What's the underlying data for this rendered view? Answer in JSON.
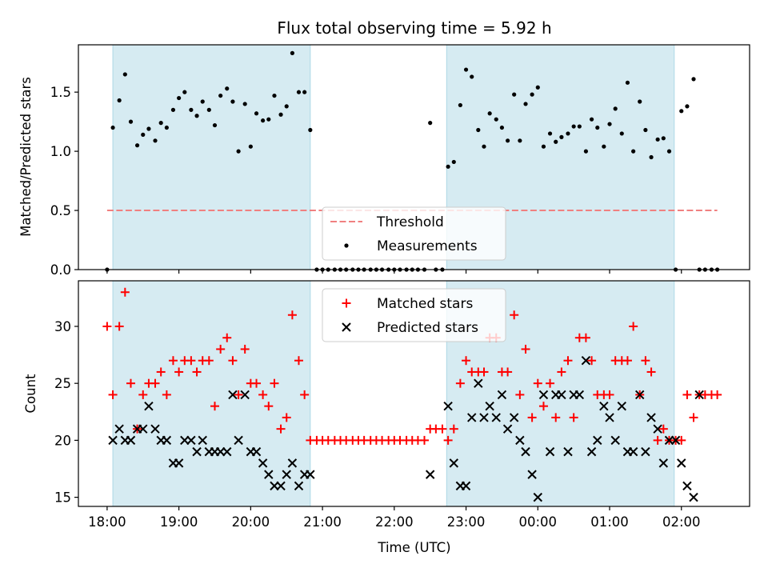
{
  "colors": {
    "shade": "#add8e6",
    "threshold": "#f08080",
    "measurement": "#000000",
    "matched": "#ff0000",
    "predicted": "#000000",
    "axis": "#000000",
    "background": "#ffffff"
  },
  "chart_data": [
    {
      "type": "scatter",
      "title": "Flux total observing time = 5.92 h",
      "ylabel": "Matched/Predicted stars",
      "xlim": [
        17.6,
        26.95
      ],
      "ylim": [
        0.0,
        1.9
      ],
      "yticks": [
        0.0,
        0.5,
        1.0,
        1.5
      ],
      "ytick_labels": [
        "0.0",
        "0.5",
        "1.0",
        "1.5"
      ],
      "xticks": [
        18,
        19,
        20,
        21,
        22,
        23,
        24,
        25,
        26
      ],
      "shaded_intervals": [
        [
          18.08,
          20.83
        ],
        [
          22.73,
          25.9
        ]
      ],
      "legend": {
        "location": "lower center",
        "entries": [
          "Threshold",
          "Measurements"
        ]
      },
      "threshold": {
        "name": "Threshold",
        "value": 0.5,
        "x_range": [
          18.0,
          26.5
        ],
        "style": "dashed"
      },
      "series": [
        {
          "name": "Measurements",
          "marker": "dot",
          "x": [
            18.0,
            18.08,
            18.17,
            18.25,
            18.33,
            18.42,
            18.5,
            18.58,
            18.67,
            18.75,
            18.83,
            18.92,
            19.0,
            19.08,
            19.17,
            19.25,
            19.33,
            19.42,
            19.5,
            19.58,
            19.67,
            19.75,
            19.83,
            19.92,
            20.0,
            20.08,
            20.17,
            20.25,
            20.33,
            20.42,
            20.5,
            20.58,
            20.67,
            20.75,
            20.83,
            20.92,
            21.0,
            21.08,
            21.17,
            21.25,
            21.33,
            21.42,
            21.5,
            21.58,
            21.67,
            21.75,
            21.83,
            21.92,
            22.0,
            22.08,
            22.17,
            22.25,
            22.33,
            22.42,
            22.5,
            22.58,
            22.67,
            22.75,
            22.83,
            22.92,
            23.0,
            23.08,
            23.17,
            23.25,
            23.33,
            23.42,
            23.5,
            23.58,
            23.67,
            23.75,
            23.83,
            23.92,
            24.0,
            24.08,
            24.17,
            24.25,
            24.33,
            24.42,
            24.5,
            24.58,
            24.67,
            24.75,
            24.83,
            24.92,
            25.0,
            25.08,
            25.17,
            25.25,
            25.33,
            25.42,
            25.5,
            25.58,
            25.67,
            25.75,
            25.83,
            25.92,
            26.0,
            26.08,
            26.17,
            26.25,
            26.33,
            26.42,
            26.5
          ],
          "y": [
            0.0,
            1.2,
            1.43,
            1.65,
            1.25,
            1.05,
            1.14,
            1.19,
            1.09,
            1.24,
            1.2,
            1.35,
            1.45,
            1.5,
            1.35,
            1.3,
            1.42,
            1.35,
            1.22,
            1.47,
            1.53,
            1.42,
            1.0,
            1.4,
            1.04,
            1.32,
            1.26,
            1.27,
            1.47,
            1.31,
            1.38,
            1.83,
            1.5,
            1.5,
            1.18,
            0.0,
            0.0,
            0.0,
            0.0,
            0.0,
            0.0,
            0.0,
            0.0,
            0.0,
            0.0,
            0.0,
            0.0,
            0.0,
            0.0,
            0.0,
            0.0,
            0.0,
            0.0,
            0.0,
            1.24,
            0.0,
            0.0,
            0.87,
            0.91,
            1.39,
            1.69,
            1.63,
            1.18,
            1.04,
            1.32,
            1.27,
            1.2,
            1.09,
            1.48,
            1.09,
            1.4,
            1.48,
            1.54,
            1.04,
            1.15,
            1.08,
            1.12,
            1.15,
            1.21,
            1.21,
            1.0,
            1.27,
            1.2,
            1.04,
            1.23,
            1.36,
            1.15,
            1.58,
            1.0,
            1.42,
            1.18,
            0.95,
            1.1,
            1.11,
            1.0,
            0.0,
            1.34,
            1.38,
            1.61,
            0.0,
            0.0,
            0.0,
            0.0
          ]
        }
      ]
    },
    {
      "type": "scatter",
      "ylabel": "Count",
      "xlabel": "Time (UTC)",
      "xlim": [
        17.6,
        26.95
      ],
      "ylim": [
        14.2,
        34.0
      ],
      "yticks": [
        15,
        20,
        25,
        30
      ],
      "ytick_labels": [
        "15",
        "20",
        "25",
        "30"
      ],
      "xticks": [
        18,
        19,
        20,
        21,
        22,
        23,
        24,
        25,
        26
      ],
      "xtick_labels": [
        "18:00",
        "19:00",
        "20:00",
        "21:00",
        "22:00",
        "23:00",
        "00:00",
        "01:00",
        "02:00"
      ],
      "shaded_intervals": [
        [
          18.08,
          20.83
        ],
        [
          22.73,
          25.9
        ]
      ],
      "legend": {
        "location": "upper center",
        "entries": [
          "Matched stars",
          "Predicted stars"
        ]
      },
      "series": [
        {
          "name": "Matched stars",
          "marker": "plus",
          "x": [
            18.0,
            18.08,
            18.17,
            18.25,
            18.33,
            18.42,
            18.5,
            18.58,
            18.67,
            18.75,
            18.83,
            18.92,
            19.0,
            19.08,
            19.17,
            19.25,
            19.33,
            19.42,
            19.5,
            19.58,
            19.67,
            19.75,
            19.83,
            19.92,
            20.0,
            20.08,
            20.17,
            20.25,
            20.33,
            20.42,
            20.5,
            20.58,
            20.67,
            20.75,
            20.83,
            20.92,
            21.0,
            21.08,
            21.17,
            21.25,
            21.33,
            21.42,
            21.5,
            21.58,
            21.67,
            21.75,
            21.83,
            21.92,
            22.0,
            22.08,
            22.17,
            22.25,
            22.33,
            22.42,
            22.5,
            22.58,
            22.67,
            22.75,
            22.83,
            22.92,
            23.0,
            23.08,
            23.17,
            23.25,
            23.33,
            23.42,
            23.5,
            23.58,
            23.67,
            23.75,
            23.83,
            23.92,
            24.0,
            24.08,
            24.17,
            24.25,
            24.33,
            24.42,
            24.5,
            24.58,
            24.67,
            24.75,
            24.83,
            24.92,
            25.0,
            25.08,
            25.17,
            25.25,
            25.33,
            25.42,
            25.5,
            25.58,
            25.67,
            25.75,
            25.83,
            25.92,
            26.0,
            26.08,
            26.17,
            26.25,
            26.33,
            26.42,
            26.5
          ],
          "y": [
            30,
            24,
            30,
            33,
            25,
            21,
            24,
            25,
            25,
            26,
            24,
            27,
            26,
            27,
            27,
            26,
            27,
            27,
            23,
            28,
            29,
            27,
            24,
            28,
            25,
            25,
            24,
            23,
            25,
            21,
            22,
            31,
            27,
            24,
            20,
            20,
            20,
            20,
            20,
            20,
            20,
            20,
            20,
            20,
            20,
            20,
            20,
            20,
            20,
            20,
            20,
            20,
            20,
            20,
            21,
            21,
            21,
            20,
            21,
            25,
            27,
            26,
            26,
            26,
            29,
            29,
            26,
            26,
            31,
            24,
            28,
            22,
            25,
            23,
            25,
            22,
            26,
            27,
            22,
            29,
            29,
            27,
            24,
            24,
            24,
            27,
            27,
            27,
            30,
            24,
            27,
            26,
            20,
            21,
            20,
            20,
            20,
            24,
            22,
            24,
            24,
            24,
            24
          ]
        },
        {
          "name": "Predicted stars",
          "marker": "x",
          "x": [
            18.08,
            18.17,
            18.25,
            18.33,
            18.42,
            18.5,
            18.58,
            18.67,
            18.75,
            18.83,
            18.92,
            19.0,
            19.08,
            19.17,
            19.25,
            19.33,
            19.42,
            19.5,
            19.58,
            19.67,
            19.75,
            19.83,
            19.92,
            20.0,
            20.08,
            20.17,
            20.25,
            20.33,
            20.42,
            20.5,
            20.58,
            20.67,
            20.75,
            20.83,
            22.5,
            22.75,
            22.83,
            22.92,
            23.0,
            23.08,
            23.17,
            23.25,
            23.33,
            23.42,
            23.5,
            23.58,
            23.67,
            23.75,
            23.83,
            23.92,
            24.0,
            24.08,
            24.17,
            24.25,
            24.33,
            24.42,
            24.5,
            24.58,
            24.67,
            24.75,
            24.83,
            24.92,
            25.0,
            25.08,
            25.17,
            25.25,
            25.33,
            25.42,
            25.5,
            25.58,
            25.67,
            25.75,
            25.83,
            25.92,
            26.0,
            26.08,
            26.17,
            26.25
          ],
          "y": [
            20,
            21,
            20,
            20,
            21,
            21,
            23,
            21,
            20,
            20,
            18,
            18,
            20,
            20,
            19,
            20,
            19,
            19,
            19,
            19,
            24,
            20,
            24,
            19,
            19,
            18,
            17,
            16,
            16,
            17,
            18,
            16,
            17,
            17,
            17,
            23,
            18,
            16,
            16,
            22,
            25,
            22,
            23,
            22,
            24,
            21,
            22,
            20,
            19,
            17,
            15,
            24,
            19,
            24,
            24,
            19,
            24,
            24,
            27,
            19,
            20,
            23,
            22,
            20,
            23,
            19,
            19,
            24,
            19,
            22,
            21,
            18,
            20,
            20,
            18,
            16,
            15,
            24
          ]
        }
      ]
    }
  ]
}
